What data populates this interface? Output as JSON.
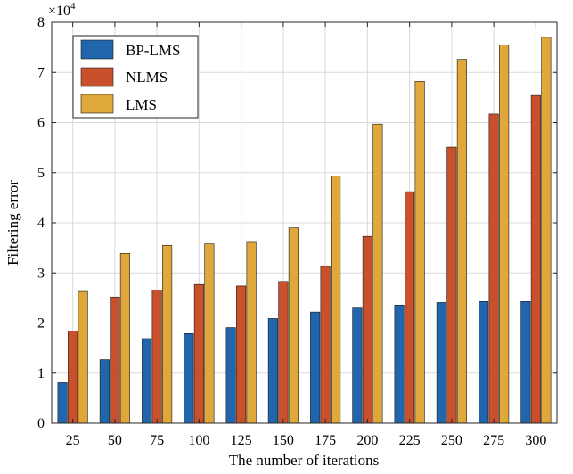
{
  "chart_data": {
    "type": "bar",
    "xlabel": "The number of iterations",
    "ylabel": "Filtering error",
    "exponent_label": "×10",
    "exponent_power": "4",
    "ylim": [
      0,
      8
    ],
    "yticks": [
      "0",
      "1",
      "2",
      "3",
      "4",
      "5",
      "6",
      "7",
      "8"
    ],
    "categories": [
      "25",
      "50",
      "75",
      "100",
      "125",
      "150",
      "175",
      "200",
      "225",
      "250",
      "275",
      "300"
    ],
    "series": [
      {
        "name": "BP-LMS",
        "color": "#2166ac",
        "values": [
          0.81,
          1.27,
          1.69,
          1.79,
          1.91,
          2.09,
          2.22,
          2.3,
          2.36,
          2.41,
          2.43,
          2.43
        ]
      },
      {
        "name": "NLMS",
        "color": "#c9502c",
        "values": [
          1.84,
          2.52,
          2.66,
          2.77,
          2.74,
          2.83,
          3.13,
          3.73,
          4.62,
          5.51,
          6.17,
          6.54
        ]
      },
      {
        "name": "LMS",
        "color": "#e0a83a",
        "values": [
          2.63,
          3.39,
          3.55,
          3.58,
          3.61,
          3.9,
          4.93,
          5.97,
          6.82,
          7.26,
          7.55,
          7.7
        ]
      }
    ],
    "legend_position": "top-left",
    "grid": true
  }
}
